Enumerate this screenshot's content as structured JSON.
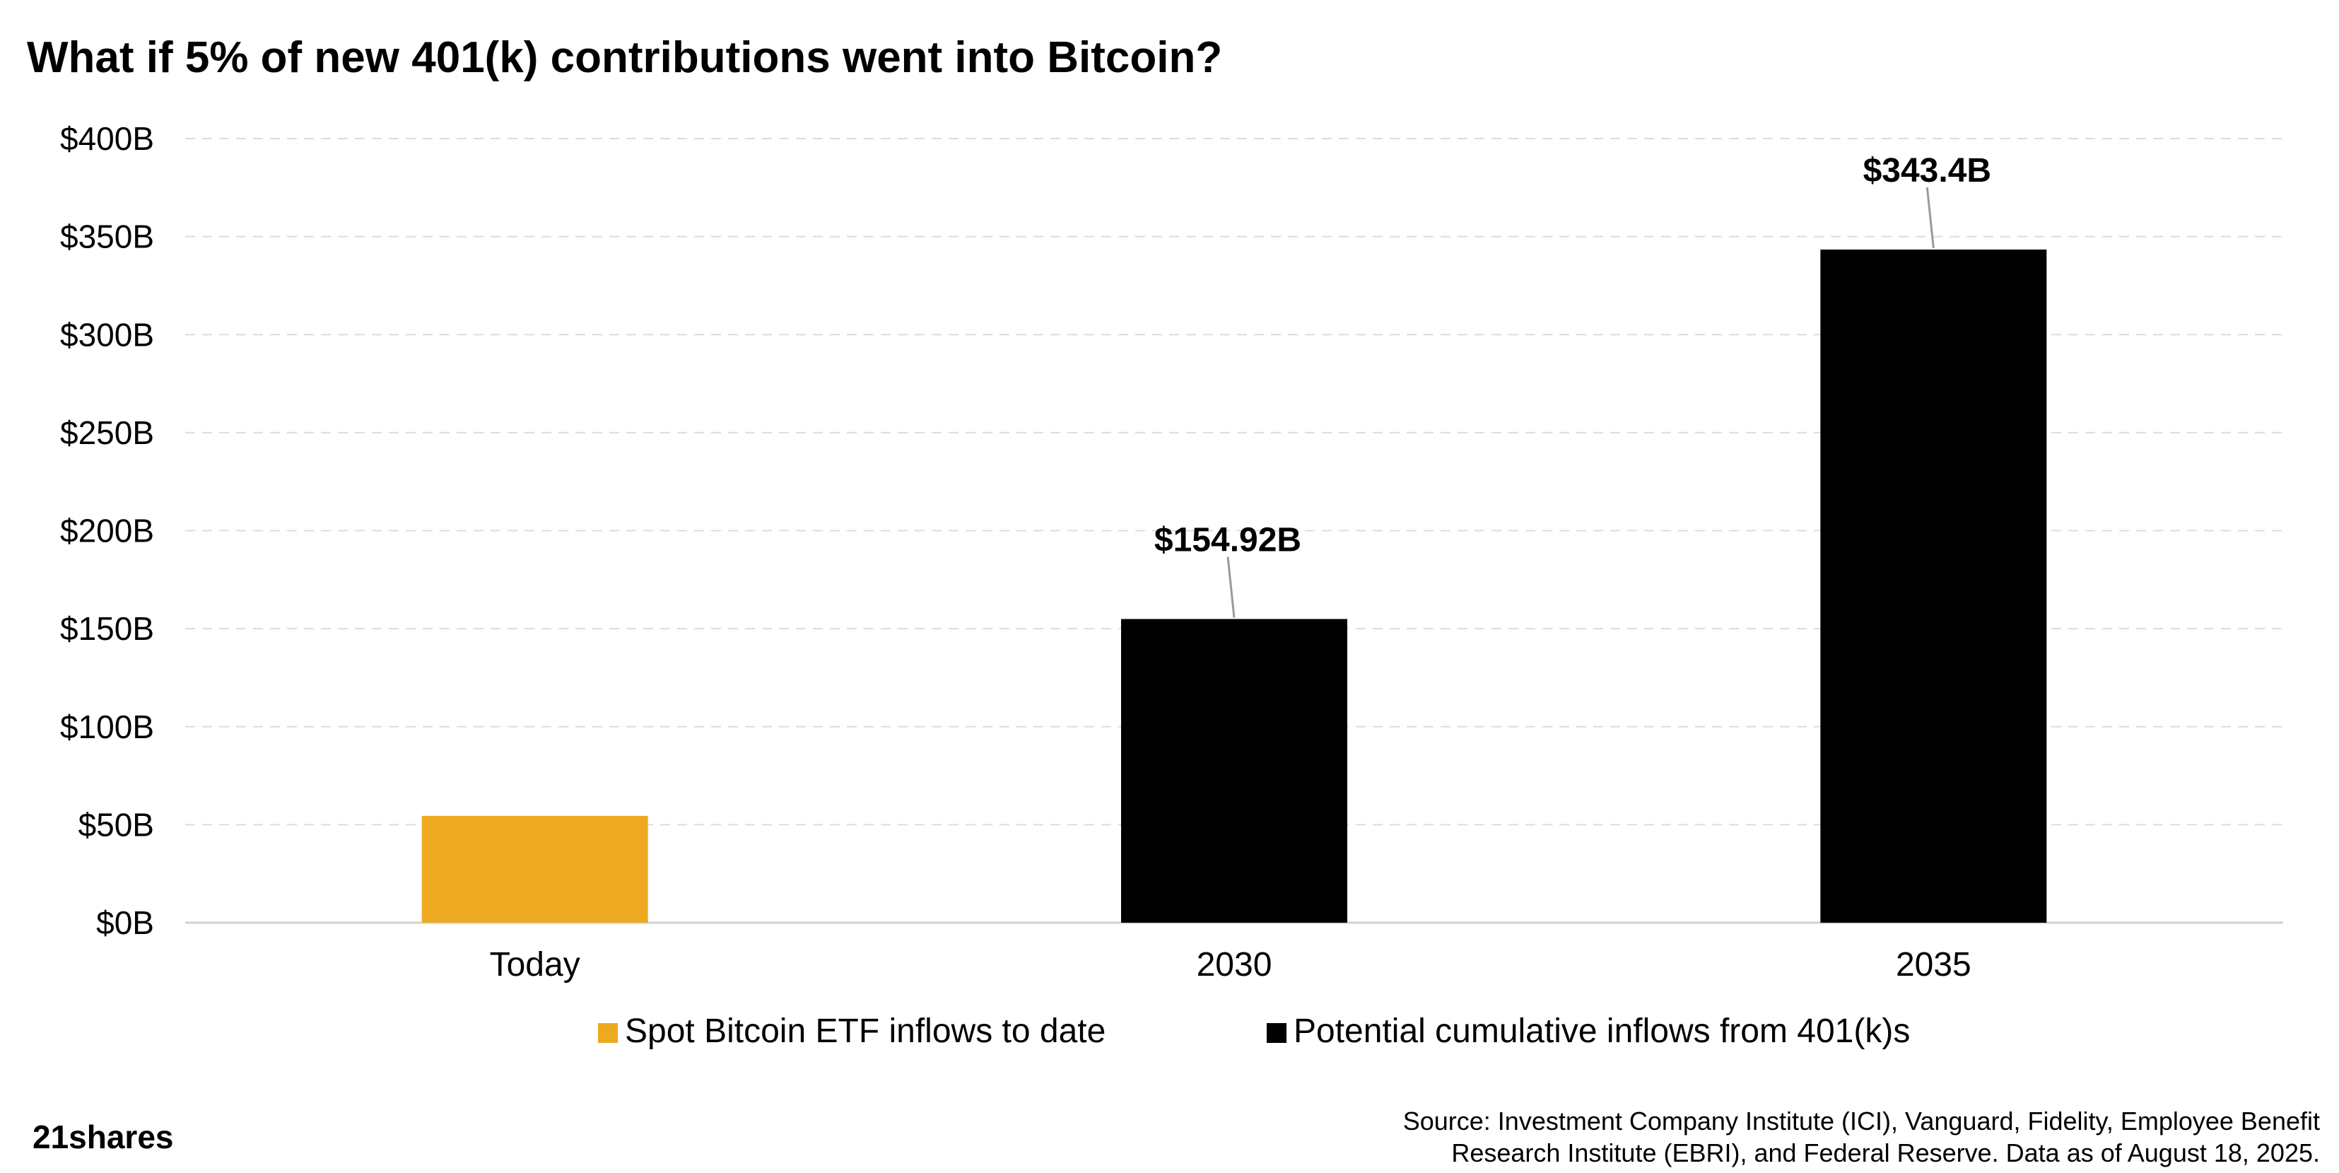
{
  "chart_data": {
    "type": "bar",
    "title": "What if 5% of new 401(k) contributions went into Bitcoin?",
    "categories": [
      "Today",
      "2030",
      "2035"
    ],
    "values": [
      54.5,
      154.92,
      343.4
    ],
    "data_labels": [
      "",
      "$154.92B",
      "$343.4B"
    ],
    "bar_series": [
      0,
      1,
      1
    ],
    "yticks": [
      "$0B",
      "$50B",
      "$100B",
      "$150B",
      "$200B",
      "$250B",
      "$300B",
      "$350B",
      "$400B"
    ],
    "ylim": [
      0,
      400
    ],
    "grid": "horizontal dashed",
    "legend_placement": "bottom-center",
    "series": [
      {
        "name": "Spot Bitcoin ETF inflows to date",
        "color": "#EEA922"
      },
      {
        "name": "Potential cumulative inflows from 401(k)s",
        "color": "#000000"
      }
    ]
  },
  "footer": {
    "logo_text": "21shares",
    "source_line1": "Source: Investment Company Institute (ICI), Vanguard, Fidelity, Employee Benefit",
    "source_line2": "Research Institute (EBRI), and Federal Reserve. Data as of August 18, 2025."
  }
}
